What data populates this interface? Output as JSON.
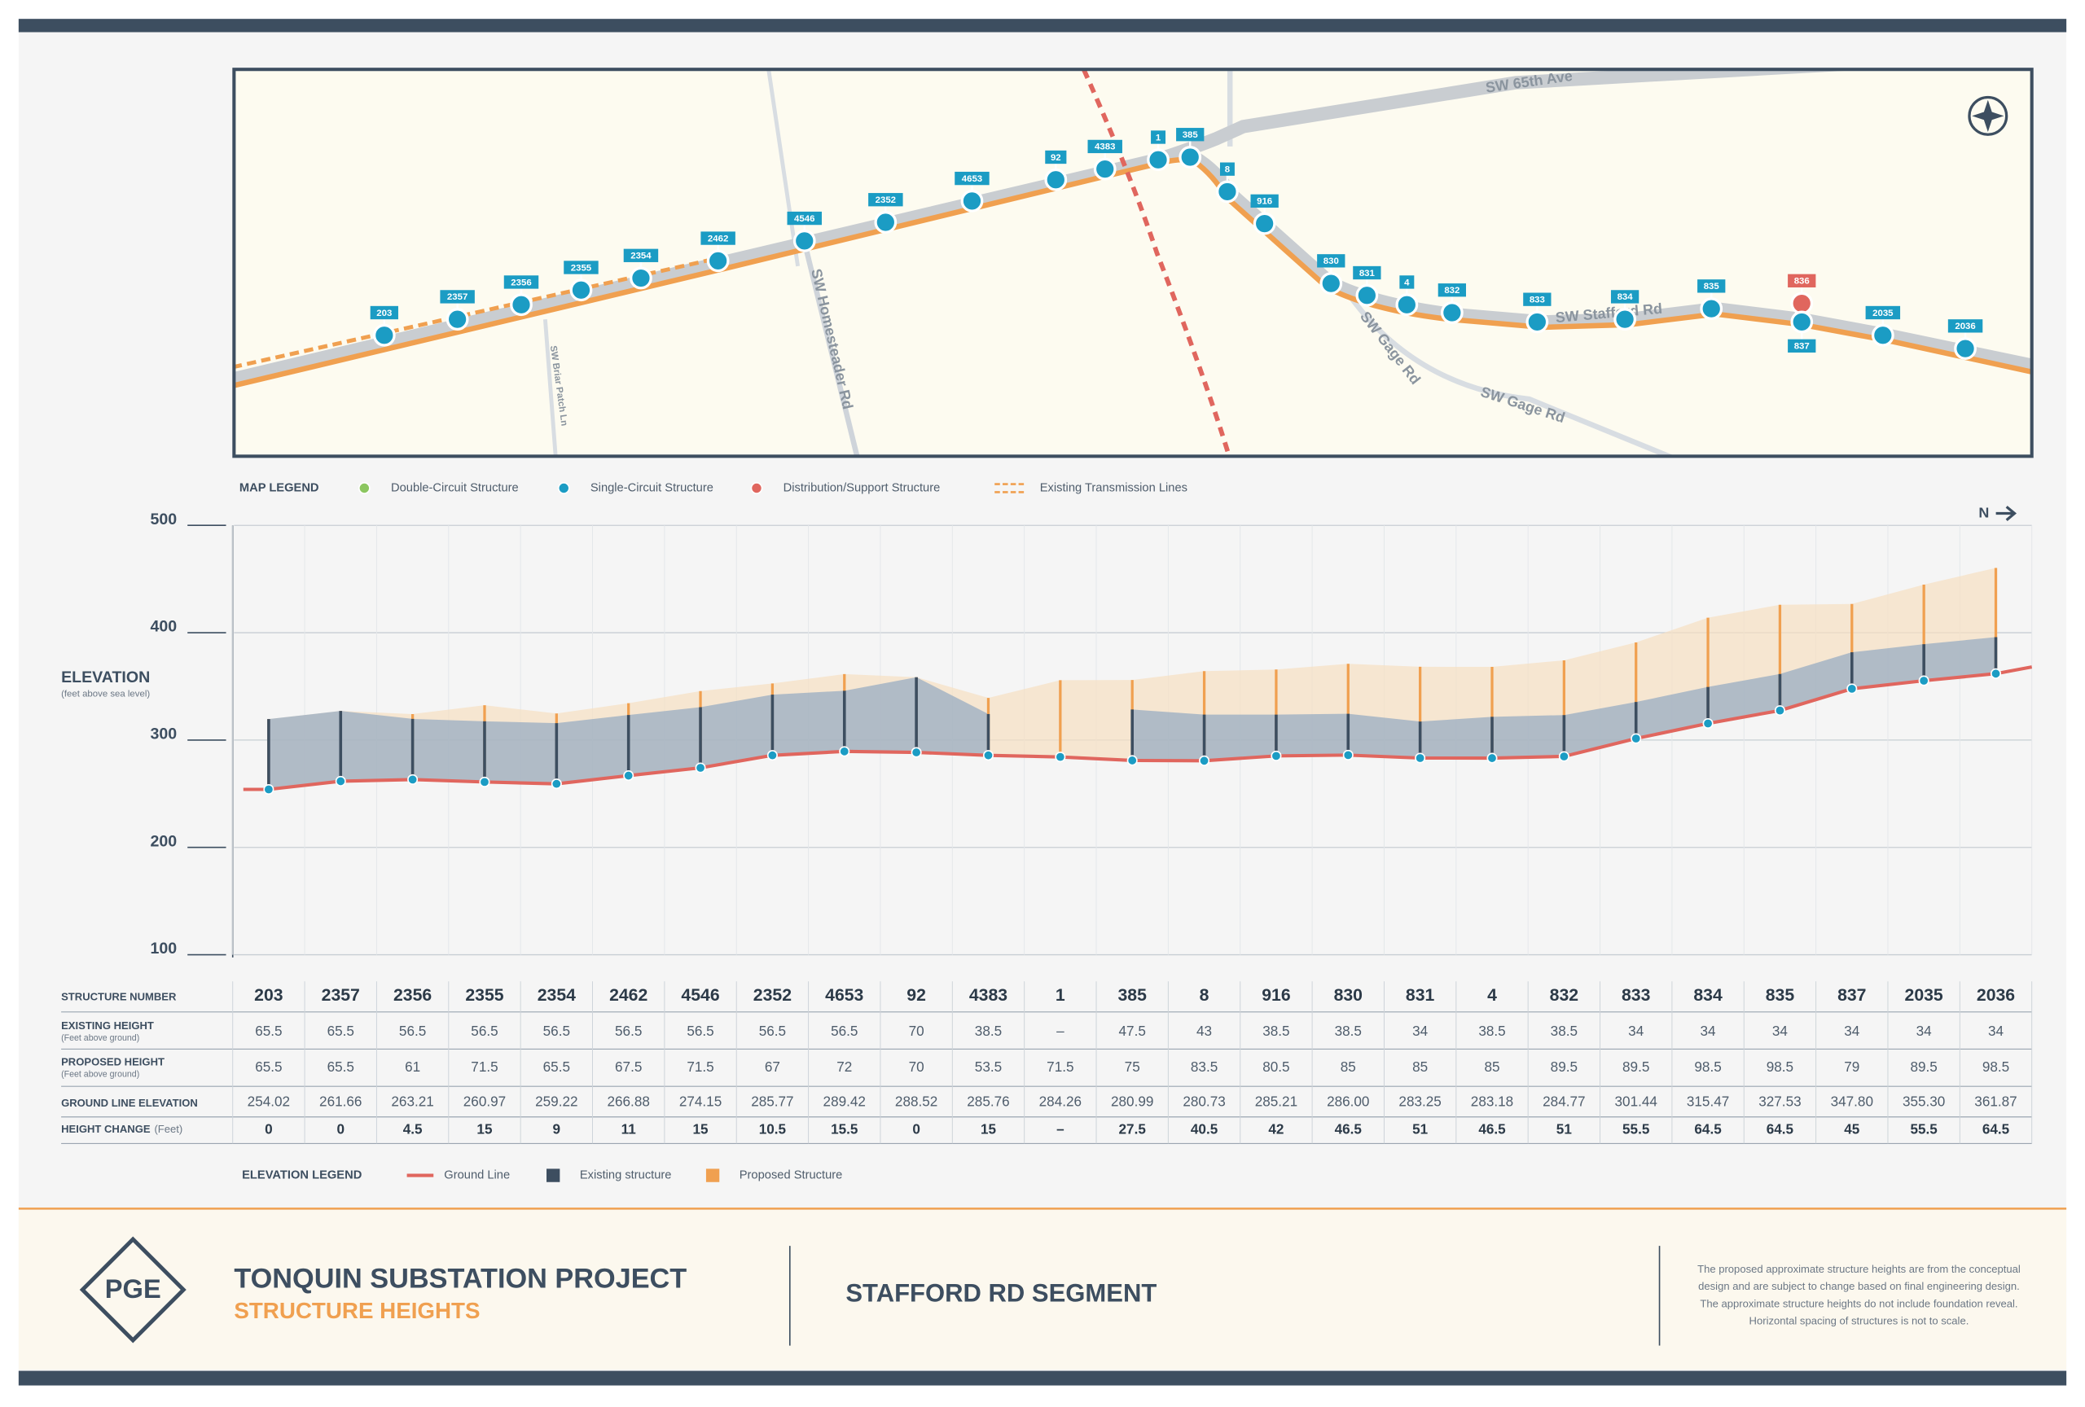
{
  "map": {
    "markers": [
      {
        "label": "203",
        "color": "#1b9cc4"
      },
      {
        "label": "2357",
        "color": "#1b9cc4"
      },
      {
        "label": "2356",
        "color": "#1b9cc4"
      },
      {
        "label": "2355",
        "color": "#1b9cc4"
      },
      {
        "label": "2354",
        "color": "#1b9cc4"
      },
      {
        "label": "2462",
        "color": "#1b9cc4"
      },
      {
        "label": "4546",
        "color": "#1b9cc4"
      },
      {
        "label": "2352",
        "color": "#1b9cc4"
      },
      {
        "label": "4653",
        "color": "#1b9cc4"
      },
      {
        "label": "92",
        "color": "#1b9cc4"
      },
      {
        "label": "4383",
        "color": "#1b9cc4"
      },
      {
        "label": "1",
        "color": "#1b9cc4"
      },
      {
        "label": "385",
        "color": "#1b9cc4"
      },
      {
        "label": "8",
        "color": "#1b9cc4"
      },
      {
        "label": "916",
        "color": "#1b9cc4"
      },
      {
        "label": "830",
        "color": "#1b9cc4"
      },
      {
        "label": "831",
        "color": "#1b9cc4"
      },
      {
        "label": "4",
        "color": "#1b9cc4"
      },
      {
        "label": "832",
        "color": "#1b9cc4"
      },
      {
        "label": "833",
        "color": "#1b9cc4"
      },
      {
        "label": "834",
        "color": "#1b9cc4"
      },
      {
        "label": "835",
        "color": "#1b9cc4"
      },
      {
        "label": "836",
        "color": "#e0665e"
      },
      {
        "label": "837",
        "color": "#1b9cc4"
      },
      {
        "label": "2035",
        "color": "#1b9cc4"
      },
      {
        "label": "2036",
        "color": "#1b9cc4"
      }
    ],
    "roads": [
      "SW Homesteader Rd",
      "SW Briar Patch Ln",
      "SW Gage Rd",
      "SW Gage Rd",
      "SW Stafford Rd",
      "SW 65th Ave"
    ],
    "legend": {
      "title": "MAP LEGEND",
      "items": [
        {
          "label": "Double-Circuit Structure",
          "color": "#8cc660"
        },
        {
          "label": "Single-Circuit Structure",
          "color": "#1b9cc4"
        },
        {
          "label": "Distribution/Support Structure",
          "color": "#e0665e"
        },
        {
          "label": "Existing Transmission Lines",
          "color": "#f0a050"
        }
      ]
    }
  },
  "chart_data": {
    "type": "structure-profile",
    "y_label": "ELEVATION",
    "y_sublabel": "(feet above sea level)",
    "north": "N",
    "category_label": "STRUCTURE NUMBER",
    "categories": [
      "203",
      "2357",
      "2356",
      "2355",
      "2354",
      "2462",
      "4546",
      "2352",
      "4653",
      "92",
      "4383",
      "1",
      "385",
      "8",
      "916",
      "830",
      "831",
      "4",
      "832",
      "833",
      "834",
      "835",
      "837",
      "2035",
      "2036"
    ],
    "series": [
      {
        "name": "Ground Line",
        "row_label": "GROUND LINE ELEVATION",
        "color": "#e0665e",
        "values": [
          254.02,
          261.66,
          263.21,
          260.97,
          259.22,
          266.88,
          274.15,
          285.77,
          289.42,
          288.52,
          285.76,
          284.26,
          280.99,
          280.73,
          285.21,
          286.0,
          283.25,
          283.18,
          284.77,
          301.44,
          315.47,
          327.53,
          347.8,
          355.3,
          361.87
        ],
        "value_labels": [
          "254.02",
          "261.66",
          "263.21",
          "260.97",
          "259.22",
          "266.88",
          "274.15",
          "285.77",
          "289.42",
          "288.52",
          "285.76",
          "284.26",
          "280.99",
          "280.73",
          "285.21",
          "286.00",
          "283.25",
          "283.18",
          "284.77",
          "301.44",
          "315.47",
          "327.53",
          "347.80",
          "355.30",
          "361.87"
        ]
      },
      {
        "name": "Existing structure",
        "row_label": "EXISTING HEIGHT",
        "row_sublabel": "(Feet above ground)",
        "color": "#3d4e60",
        "values": [
          65.5,
          65.5,
          56.5,
          56.5,
          56.5,
          56.5,
          56.5,
          56.5,
          56.5,
          70,
          38.5,
          null,
          47.5,
          43,
          38.5,
          38.5,
          34,
          38.5,
          38.5,
          34,
          34,
          34,
          34,
          34,
          34
        ],
        "value_labels": [
          "65.5",
          "65.5",
          "56.5",
          "56.5",
          "56.5",
          "56.5",
          "56.5",
          "56.5",
          "56.5",
          "70",
          "38.5",
          "–",
          "47.5",
          "43",
          "38.5",
          "38.5",
          "34",
          "38.5",
          "38.5",
          "34",
          "34",
          "34",
          "34",
          "34",
          "34"
        ]
      },
      {
        "name": "Proposed Structure",
        "row_label": "PROPOSED HEIGHT",
        "row_sublabel": "(Feet above ground)",
        "color": "#f0a050",
        "values": [
          65.5,
          65.5,
          61,
          71.5,
          65.5,
          67.5,
          71.5,
          67,
          72,
          70,
          53.5,
          71.5,
          75,
          83.5,
          80.5,
          85,
          85,
          85,
          89.5,
          89.5,
          98.5,
          98.5,
          79,
          89.5,
          98.5
        ]
      }
    ],
    "height_change": {
      "row_label": "HEIGHT CHANGE",
      "row_sublabel": "(Feet)",
      "values": [
        0,
        0,
        4.5,
        15,
        9,
        11,
        15,
        10.5,
        15.5,
        0,
        15,
        null,
        27.5,
        40.5,
        42,
        46.5,
        51,
        46.5,
        51,
        55.5,
        64.5,
        64.5,
        45,
        55.5,
        64.5
      ],
      "value_labels": [
        "0",
        "0",
        "4.5",
        "15",
        "9",
        "11",
        "15",
        "10.5",
        "15.5",
        "0",
        "15",
        "–",
        "27.5",
        "40.5",
        "42",
        "46.5",
        "51",
        "46.5",
        "51",
        "55.5",
        "64.5",
        "64.5",
        "45",
        "55.5",
        "64.5"
      ]
    },
    "legend_title": "ELEVATION LEGEND",
    "ylim": [
      100,
      500
    ],
    "yticks": [
      100,
      200,
      300,
      400,
      500
    ],
    "grid": true
  },
  "footer": {
    "logo": "PGE",
    "title": "TONQUIN SUBSTATION PROJECT",
    "subtitle": "STRUCTURE HEIGHTS",
    "segment": "STAFFORD RD SEGMENT",
    "note": [
      "The proposed approximate structure heights are from the conceptual",
      "design and are subject to change based on final engineering design.",
      "The approximate structure heights do not include foundation reveal.",
      "Horizontal spacing of structures is not to scale."
    ]
  }
}
